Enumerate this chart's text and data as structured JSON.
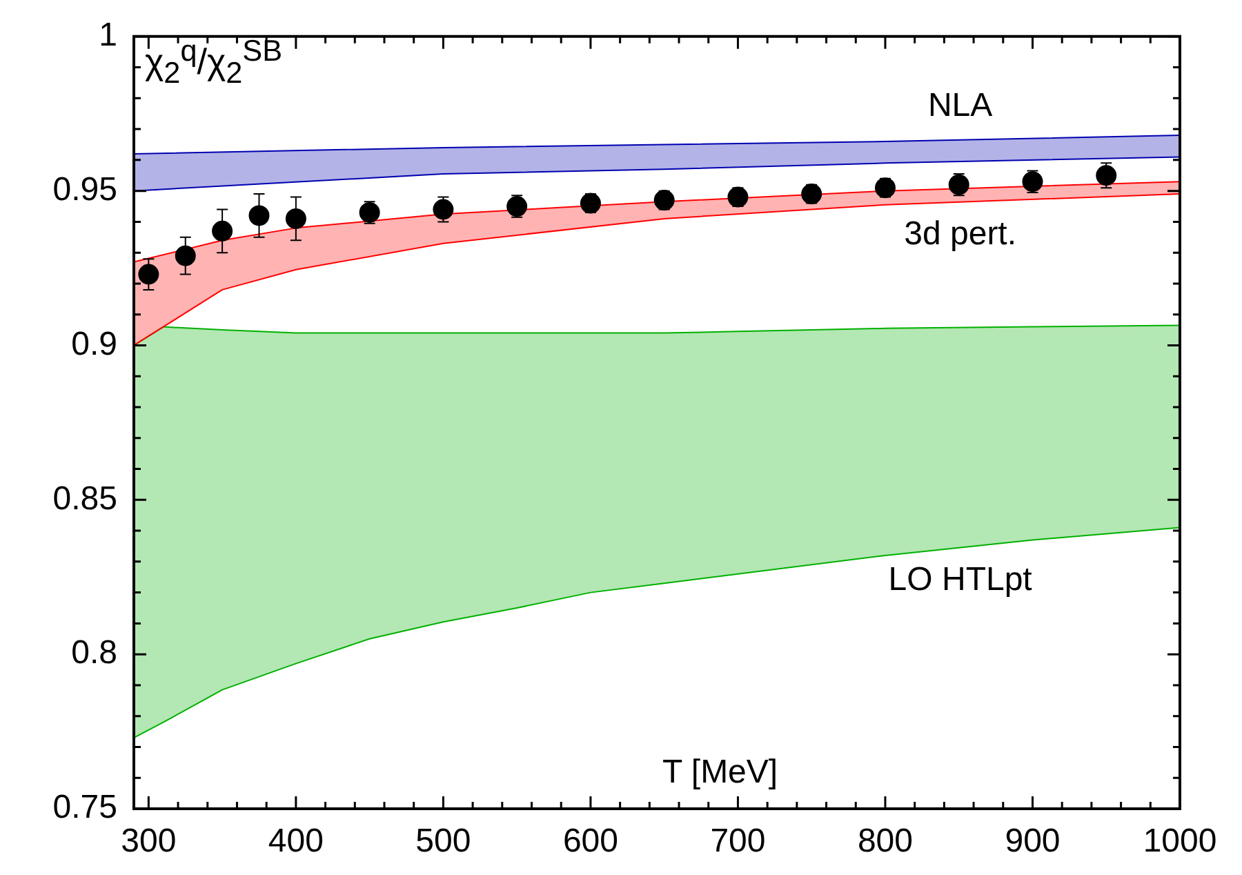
{
  "chart_data": {
    "type": "scatter",
    "xlabel": "T [MeV]",
    "ylabel": "χ$_{2}$$^{q}$/χ$_{2}$$^{SB}$",
    "xlim": [
      290,
      1000
    ],
    "ylim": [
      0.75,
      1
    ],
    "xticks": [
      300,
      {
        "value": 320,
        "label": null
      },
      {
        "value": 340,
        "label": null
      },
      {
        "value": 360,
        "label": null
      },
      {
        "value": 380,
        "label": null
      },
      400,
      {
        "value": 420,
        "label": null
      },
      {
        "value": 440,
        "label": null
      },
      {
        "value": 460,
        "label": null
      },
      {
        "value": 480,
        "label": null
      },
      500,
      {
        "value": 520,
        "label": null
      },
      {
        "value": 540,
        "label": null
      },
      {
        "value": 560,
        "label": null
      },
      {
        "value": 580,
        "label": null
      },
      600,
      {
        "value": 620,
        "label": null
      },
      {
        "value": 640,
        "label": null
      },
      {
        "value": 660,
        "label": null
      },
      {
        "value": 680,
        "label": null
      },
      700,
      {
        "value": 720,
        "label": null
      },
      {
        "value": 740,
        "label": null
      },
      {
        "value": 760,
        "label": null
      },
      {
        "value": 780,
        "label": null
      },
      800,
      {
        "value": 820,
        "label": null
      },
      {
        "value": 840,
        "label": null
      },
      {
        "value": 860,
        "label": null
      },
      {
        "value": 880,
        "label": null
      },
      900,
      {
        "value": 920,
        "label": null
      },
      {
        "value": 940,
        "label": null
      },
      {
        "value": 960,
        "label": null
      },
      {
        "value": 980,
        "label": null
      },
      1000
    ],
    "yticks": [
      0.75,
      {
        "value": 0.76,
        "label": null
      },
      {
        "value": 0.77,
        "label": null
      },
      {
        "value": 0.78,
        "label": null
      },
      {
        "value": 0.79,
        "label": null
      },
      0.8,
      {
        "value": 0.81,
        "label": null
      },
      {
        "value": 0.82,
        "label": null
      },
      {
        "value": 0.83,
        "label": null
      },
      {
        "value": 0.84,
        "label": null
      },
      0.85,
      {
        "value": 0.86,
        "label": null
      },
      {
        "value": 0.87,
        "label": null
      },
      {
        "value": 0.88,
        "label": null
      },
      {
        "value": 0.89,
        "label": null
      },
      0.9,
      {
        "value": 0.91,
        "label": null
      },
      {
        "value": 0.92,
        "label": null
      },
      {
        "value": 0.93,
        "label": null
      },
      {
        "value": 0.94,
        "label": null
      },
      0.95,
      {
        "value": 0.96,
        "label": null
      },
      {
        "value": 0.97,
        "label": null
      },
      {
        "value": 0.98,
        "label": null
      },
      {
        "value": 0.99,
        "label": null
      },
      1
    ],
    "grid": false,
    "legend": false,
    "series": [
      {
        "marker": "circle",
        "color": "#000000",
        "x": [
          300,
          325,
          350,
          375,
          400,
          450,
          500,
          550,
          600,
          650,
          700,
          750,
          800,
          850,
          900,
          950
        ],
        "values": [
          0.923,
          0.929,
          0.937,
          0.942,
          0.941,
          0.943,
          0.944,
          0.945,
          0.946,
          0.947,
          0.948,
          0.949,
          0.951,
          0.952,
          0.953,
          0.955
        ],
        "errors": [
          0.005,
          0.006,
          0.007,
          0.007,
          0.007,
          0.0035,
          0.004,
          0.0035,
          0.003,
          0.003,
          0.003,
          0.003,
          0.003,
          0.0035,
          0.0035,
          0.004
        ]
      },
      {
        "type": "area",
        "color": "#00b000",
        "x": [
          290,
          310,
          350,
          400,
          450,
          500,
          550,
          600,
          650,
          700,
          800,
          900,
          1000
        ],
        "values": [
          0.9,
          0.906,
          0.905,
          0.904,
          0.904,
          0.904,
          0.904,
          0.904,
          0.904,
          0.9045,
          0.9055,
          0.906,
          0.9065
        ]
      },
      {
        "type": "line",
        "name": "LO HTLpt",
        "color": "#00b000",
        "x": [
          290,
          310,
          350,
          400,
          450,
          500,
          550,
          600,
          650,
          700,
          800,
          900,
          1000
        ],
        "values": [
          0.773,
          0.778,
          0.7885,
          0.797,
          0.805,
          0.8105,
          0.815,
          0.82,
          0.823,
          0.826,
          0.832,
          0.837,
          0.841
        ]
      },
      {
        "type": "area",
        "color": "#ff0000",
        "x": [
          290,
          350,
          400,
          500,
          650,
          800,
          1000
        ],
        "values": [
          0.927,
          0.934,
          0.938,
          0.9425,
          0.9465,
          0.95,
          0.953
        ]
      },
      {
        "type": "line",
        "name": "3d pert.",
        "color": "#ff0000",
        "x": [
          290,
          350,
          400,
          500,
          650,
          800,
          1000
        ],
        "values": [
          0.9,
          0.918,
          0.9245,
          0.933,
          0.941,
          0.9455,
          0.949
        ]
      },
      {
        "type": "area",
        "name": "NLA",
        "color": "#0000b0",
        "x": [
          290,
          500,
          650,
          800,
          1000
        ],
        "values": [
          0.962,
          0.964,
          0.965,
          0.966,
          0.968
        ]
      },
      {
        "type": "line",
        "color": "#0000b0",
        "x": [
          290,
          500,
          650,
          800,
          1000
        ],
        "values": [
          0.95,
          0.9555,
          0.957,
          0.959,
          0.961
        ]
      }
    ]
  }
}
